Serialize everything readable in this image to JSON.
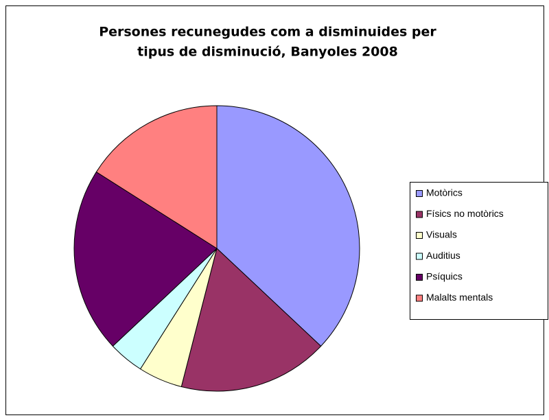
{
  "chart_data": {
    "type": "pie",
    "title": [
      "Persones recunegudes com a disminuides per",
      "tipus de disminució, Banyoles 2008"
    ],
    "categories": [
      "Motòrics",
      "Físics no motòrics",
      "Visuals",
      "Auditius",
      "Psíquics",
      "Malalts mentals"
    ],
    "values": [
      37,
      17,
      5,
      4,
      21,
      16
    ],
    "colors": [
      "#9999ff",
      "#993366",
      "#ffffcc",
      "#ccffff",
      "#660066",
      "#ff8080"
    ],
    "legend": "right"
  }
}
